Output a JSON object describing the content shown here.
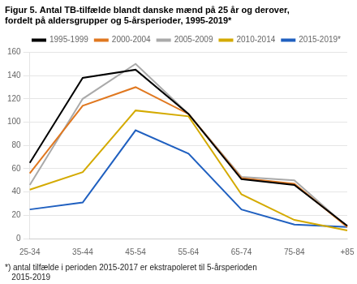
{
  "chart_data": {
    "type": "line",
    "title": [
      "Figur 5. Antal TB-tilfælde blandt danske mænd på 25 år og derover,",
      "fordelt på aldersgrupper og 5-årsperioder, 1995-2019*"
    ],
    "annotations": [
      "*) antal tilfælde i perioden 2015-2017 er ekstrapoleret til 5-årsperioden",
      "   2015-2019"
    ],
    "categories": [
      "25-34",
      "35-44",
      "45-54",
      "55-64",
      "65-74",
      "75-84",
      "+85"
    ],
    "series": [
      {
        "name": "1995-1999",
        "color": "#000000",
        "values": [
          65,
          138,
          145,
          107,
          51,
          46,
          11
        ]
      },
      {
        "name": "2000-2004",
        "color": "#e07820",
        "values": [
          56,
          114,
          130,
          107,
          52,
          47,
          10
        ]
      },
      {
        "name": "2005-2009",
        "color": "#aaaaaa",
        "values": [
          46,
          120,
          150,
          107,
          53,
          50,
          10
        ]
      },
      {
        "name": "2010-2014",
        "color": "#d4aa00",
        "values": [
          42,
          57,
          110,
          105,
          38,
          16,
          7
        ]
      },
      {
        "name": "2015-2019*",
        "color": "#2060c0",
        "values": [
          25,
          31,
          93,
          73,
          25,
          12,
          10
        ]
      }
    ],
    "ylim": [
      0,
      160
    ],
    "yticks": [
      0,
      20,
      40,
      60,
      80,
      100,
      120,
      140,
      160
    ],
    "grid": true,
    "legend": "upper right"
  }
}
